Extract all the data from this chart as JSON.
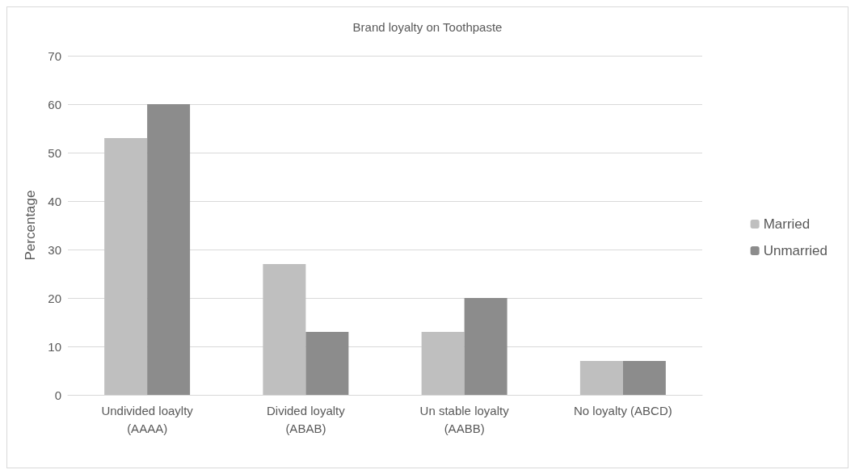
{
  "chart_data": {
    "type": "bar",
    "title": "Brand loyalty on Toothpaste",
    "ylabel": "Percentage",
    "categories": [
      "Undivided loaylty\n(AAAA)",
      "Divided loyalty\n(ABAB)",
      "Un stable loyalty\n(AABB)",
      "No loyalty (ABCD)"
    ],
    "series": [
      {
        "name": "Married",
        "color": "#bfbfbf",
        "values": [
          53,
          27,
          13,
          7
        ]
      },
      {
        "name": "Unmarried",
        "color": "#8c8c8c",
        "values": [
          60,
          13,
          20,
          7
        ]
      }
    ],
    "ylim": [
      0,
      70
    ],
    "yticks": [
      0,
      10,
      20,
      30,
      40,
      50,
      60,
      70
    ],
    "grid": "y",
    "legend": "right"
  }
}
